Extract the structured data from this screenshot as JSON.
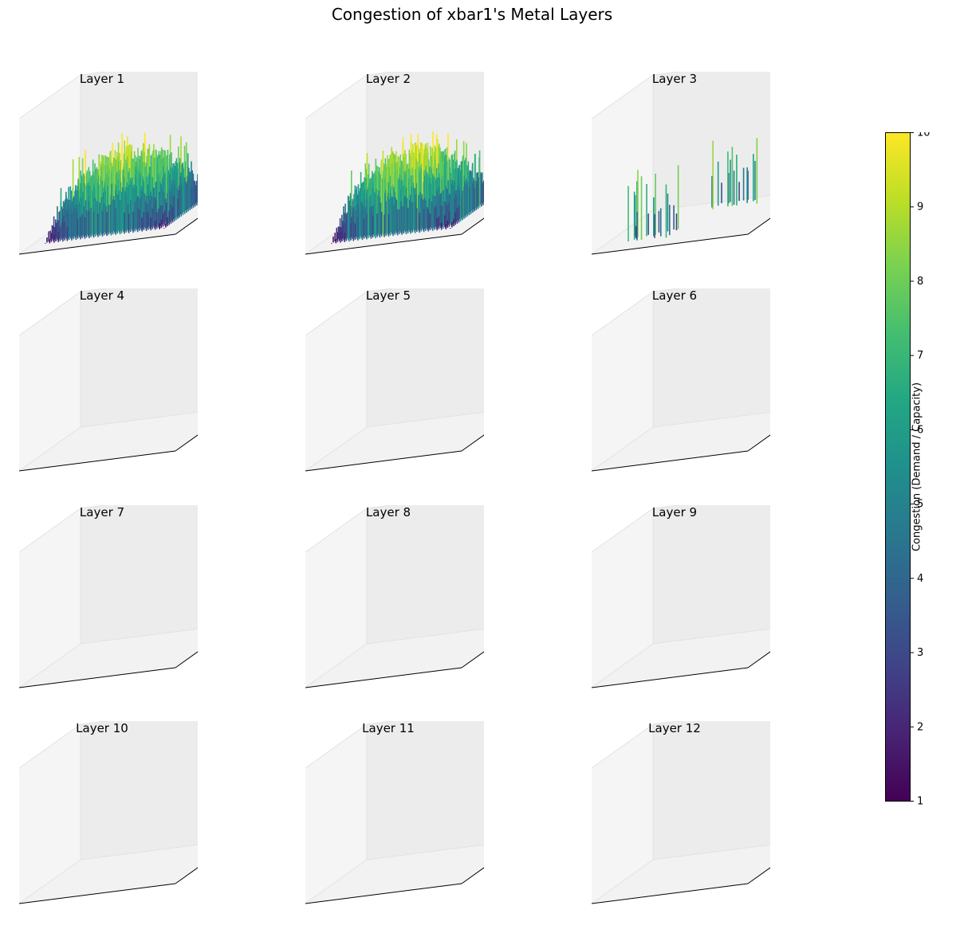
{
  "title": "Congestion of xbar1's Metal Layers",
  "chart_data": {
    "type": "bar3d",
    "title": "Congestion of xbar1's Metal Layers",
    "colormap": "viridis",
    "colorbar": {
      "label": "Congestion (Demand / Capacity)",
      "range": [
        1,
        10
      ],
      "ticks": [
        "1",
        "2",
        "3",
        "4",
        "5",
        "6",
        "7",
        "8",
        "9",
        "10"
      ]
    },
    "layers": [
      {
        "name": "Layer 1",
        "pattern": "dense-high",
        "typical_congestion": [
          2,
          10
        ]
      },
      {
        "name": "Layer 2",
        "pattern": "dense-high",
        "typical_congestion": [
          1.5,
          10
        ]
      },
      {
        "name": "Layer 3",
        "pattern": "sparse-spikes",
        "typical_congestion": [
          1,
          9
        ]
      },
      {
        "name": "Layer 4",
        "pattern": "flat",
        "typical_congestion": [
          1,
          1
        ]
      },
      {
        "name": "Layer 5",
        "pattern": "flat",
        "typical_congestion": [
          1,
          1
        ]
      },
      {
        "name": "Layer 6",
        "pattern": "flat",
        "typical_congestion": [
          1,
          1
        ]
      },
      {
        "name": "Layer 7",
        "pattern": "flat",
        "typical_congestion": [
          1,
          1
        ]
      },
      {
        "name": "Layer 8",
        "pattern": "flat",
        "typical_congestion": [
          1,
          1
        ]
      },
      {
        "name": "Layer 9",
        "pattern": "flat",
        "typical_congestion": [
          1,
          1
        ]
      },
      {
        "name": "Layer 10",
        "pattern": "flat",
        "typical_congestion": [
          1,
          1
        ]
      },
      {
        "name": "Layer 11",
        "pattern": "flat",
        "typical_congestion": [
          1,
          1
        ]
      },
      {
        "name": "Layer 12",
        "pattern": "flat",
        "typical_congestion": [
          1,
          1
        ]
      }
    ]
  }
}
